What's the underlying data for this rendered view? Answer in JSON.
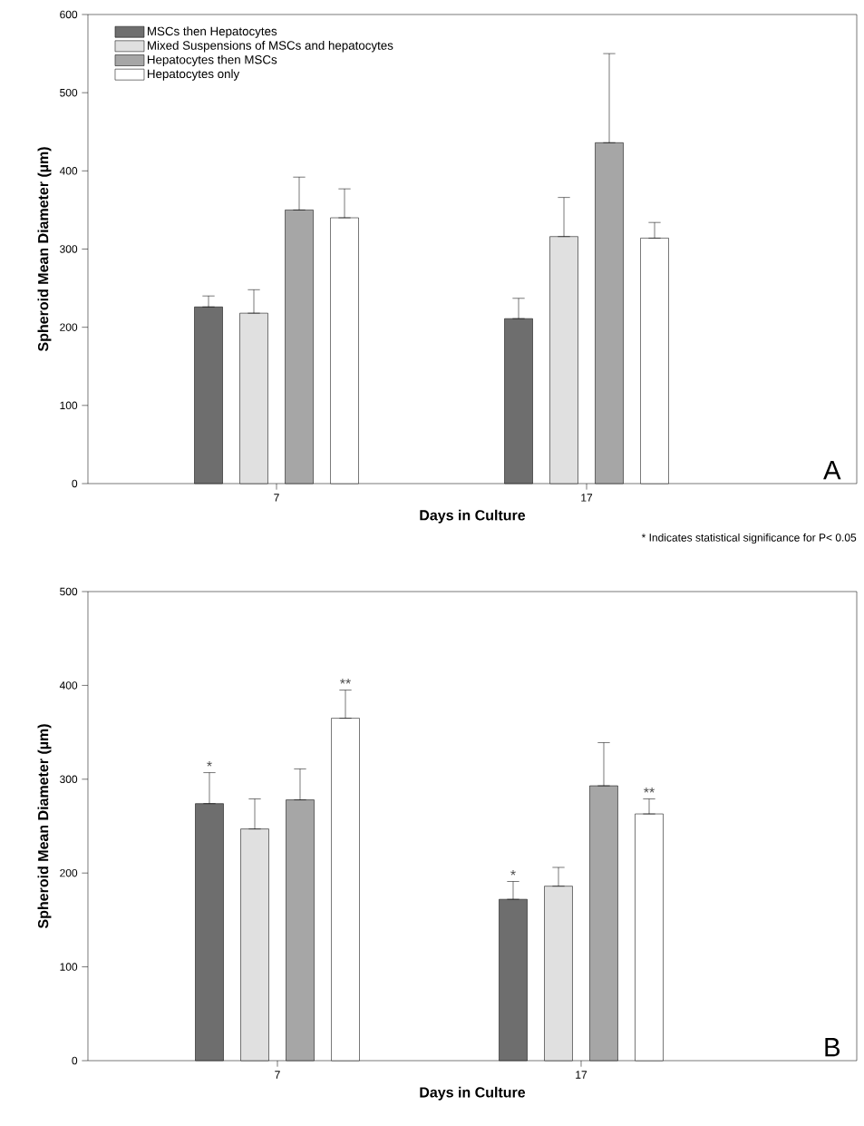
{
  "chart_data": [
    {
      "type": "bar",
      "xlabel": "Days in Culture",
      "ylabel": "Spheroid Mean Diameter (µm)",
      "categories": [
        "7",
        "17"
      ],
      "ylim": [
        0,
        600
      ],
      "yticks": [
        0,
        100,
        200,
        300,
        400,
        500,
        600
      ],
      "legend": "top left",
      "series": [
        {
          "name": "MSCs then Hepatocytes",
          "color": "#6e6e6e",
          "values": [
            226,
            211
          ],
          "errors": [
            [
              226,
              240
            ],
            [
              211,
              237
            ]
          ]
        },
        {
          "name": "Mixed Suspensions of MSCs and hepatocytes",
          "color": "#e0e0e0",
          "values": [
            218,
            316
          ],
          "errors": [
            [
              218,
              248
            ],
            [
              316,
              366
            ]
          ]
        },
        {
          "name": "Hepatocytes then MSCs",
          "color": "#a6a6a6",
          "values": [
            350,
            436
          ],
          "errors": [
            [
              350,
              392
            ],
            [
              436,
              550
            ]
          ]
        },
        {
          "name": "Hepatocytes only",
          "color": "#ffffff",
          "values": [
            340,
            314
          ],
          "errors": [
            [
              340,
              377
            ],
            [
              314,
              334
            ]
          ]
        }
      ],
      "annotations": [
        "A",
        "* Indicates statistical significance for  P< 0.05"
      ]
    },
    {
      "type": "bar",
      "xlabel": "Days in Culture",
      "ylabel": "Spheroid Mean Diameter (µm)",
      "categories": [
        "7",
        "17"
      ],
      "ylim": [
        0,
        500
      ],
      "yticks": [
        0,
        100,
        200,
        300,
        400,
        500
      ],
      "series": [
        {
          "color": "#6e6e6e",
          "values": [
            274,
            172
          ],
          "errors": [
            [
              274,
              307
            ],
            [
              172,
              191
            ]
          ]
        },
        {
          "color": "#e0e0e0",
          "values": [
            247,
            186
          ],
          "errors": [
            [
              247,
              279
            ],
            [
              186,
              206
            ]
          ]
        },
        {
          "color": "#a6a6a6",
          "values": [
            278,
            293
          ],
          "errors": [
            [
              278,
              311
            ],
            [
              293,
              339
            ]
          ]
        },
        {
          "color": "#ffffff",
          "values": [
            365,
            263
          ],
          "errors": [
            [
              365,
              395
            ],
            [
              263,
              279
            ]
          ]
        }
      ],
      "annotations": [
        "B",
        "*",
        "**",
        "*",
        "**"
      ]
    }
  ]
}
